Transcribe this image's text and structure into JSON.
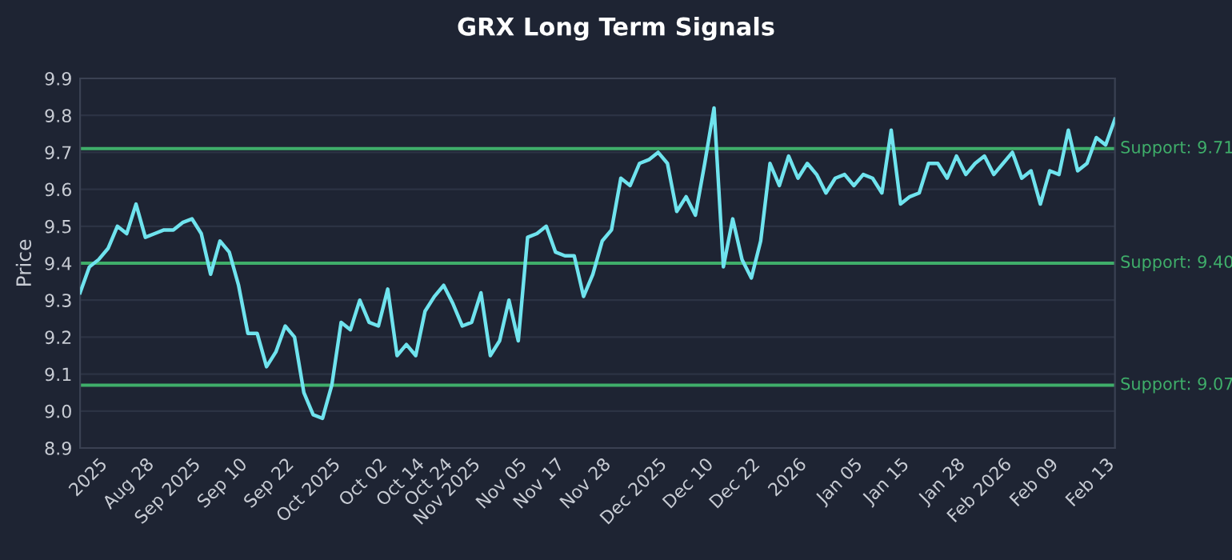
{
  "chart_data": {
    "type": "line",
    "title": "GRX Long Term Signals",
    "ylabel": "Price",
    "categories": [
      null,
      null,
      "2025",
      null,
      null,
      null,
      null,
      "Aug 28",
      null,
      null,
      null,
      null,
      "Sep 2025",
      null,
      null,
      null,
      null,
      "Sep 10",
      null,
      null,
      null,
      null,
      "Sep 22",
      null,
      null,
      null,
      null,
      "Oct 2025",
      null,
      null,
      null,
      null,
      "Oct 02",
      null,
      null,
      null,
      "Oct 14",
      null,
      null,
      "Oct 24",
      null,
      null,
      "Nov 2025",
      null,
      null,
      null,
      null,
      "Nov 05",
      null,
      null,
      null,
      "Nov 17",
      null,
      null,
      null,
      null,
      "Nov 28",
      null,
      null,
      null,
      null,
      null,
      "Dec 2025",
      null,
      null,
      null,
      null,
      "Dec 10",
      null,
      null,
      null,
      null,
      "Dec 22",
      null,
      null,
      null,
      null,
      "2026",
      null,
      null,
      null,
      null,
      null,
      "Jan 05",
      null,
      null,
      null,
      null,
      "Jan 15",
      null,
      null,
      null,
      null,
      null,
      "Jan 28",
      null,
      null,
      null,
      null,
      "Feb 2026",
      null,
      null,
      null,
      null,
      "Feb 09",
      null,
      null,
      null,
      null,
      null,
      "Feb 13",
      null
    ],
    "series": [
      {
        "color": "#6fe3ee",
        "values": [
          9.32,
          9.39,
          9.41,
          9.44,
          9.5,
          9.48,
          9.56,
          9.47,
          9.48,
          9.49,
          9.49,
          9.51,
          9.52,
          9.48,
          9.37,
          9.46,
          9.43,
          9.34,
          9.21,
          9.21,
          9.12,
          9.16,
          9.23,
          9.2,
          9.05,
          8.99,
          8.98,
          9.07,
          9.24,
          9.22,
          9.3,
          9.24,
          9.23,
          9.33,
          9.15,
          9.18,
          9.15,
          9.27,
          9.31,
          9.34,
          9.29,
          9.23,
          9.24,
          9.32,
          9.15,
          9.19,
          9.3,
          9.19,
          9.47,
          9.48,
          9.5,
          9.43,
          9.42,
          9.42,
          9.31,
          9.37,
          9.46,
          9.49,
          9.63,
          9.61,
          9.67,
          9.68,
          9.7,
          9.67,
          9.54,
          9.58,
          9.53,
          9.67,
          9.82,
          9.39,
          9.52,
          9.41,
          9.36,
          9.46,
          9.67,
          9.61,
          9.69,
          9.63,
          9.67,
          9.64,
          9.59,
          9.63,
          9.64,
          9.61,
          9.64,
          9.63,
          9.59,
          9.76,
          9.56,
          9.58,
          9.59,
          9.67,
          9.67,
          9.63,
          9.69,
          9.64,
          9.67,
          9.69,
          9.64,
          9.67,
          9.7,
          9.63,
          9.65,
          9.56,
          9.65,
          9.64,
          9.76,
          9.65,
          9.67,
          9.74,
          9.72,
          9.79
        ]
      }
    ],
    "ylim": [
      8.9,
      9.9
    ],
    "yticks": [
      8.9,
      {
        "value": 9.0,
        "label": "9.0"
      },
      9.1,
      9.2,
      9.3,
      9.4,
      9.5,
      9.6,
      9.7,
      9.8,
      9.9
    ],
    "ref_lines": [
      {
        "axis": "y",
        "value": 9.71,
        "label": "Support: 9.71",
        "color": "#3fae6a"
      },
      {
        "axis": "y",
        "value": 9.4,
        "label": "Support: 9.40",
        "color": "#3fae6a"
      },
      {
        "axis": "y",
        "value": 9.07,
        "label": "Support: 9.07",
        "color": "#3fae6a"
      }
    ],
    "grid": "y",
    "legend": false,
    "marker": "none",
    "line_style": "solid"
  }
}
